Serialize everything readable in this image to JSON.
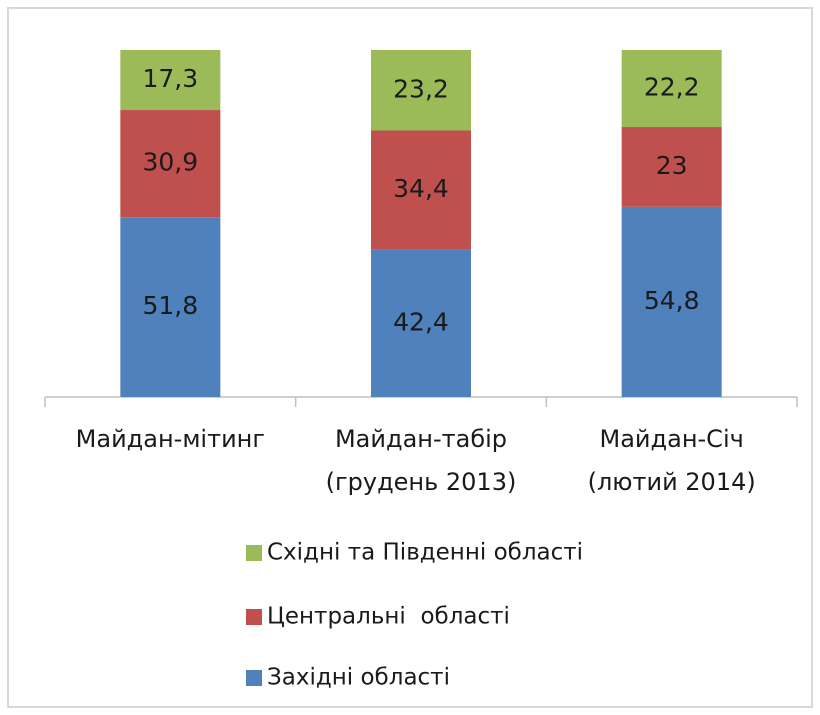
{
  "chart_data": {
    "type": "stacked_bar",
    "categories": [
      "Майдан-мітинг",
      "Майдан-табір\n(грудень 2013)",
      "Майдан-Січ\n(лютий 2014)"
    ],
    "series": [
      {
        "name": "Західні області",
        "color": "#4f81bd",
        "values": [
          51.8,
          42.4,
          54.8
        ],
        "value_labels": [
          "51,8",
          "42,4",
          "54,8"
        ]
      },
      {
        "name": "Центральні  області",
        "color": "#c0504d",
        "values": [
          30.9,
          34.4,
          23
        ],
        "value_labels": [
          "30,9",
          "34,4",
          "23"
        ]
      },
      {
        "name": "Східні та Південні області",
        "color": "#9bbb59",
        "values": [
          17.3,
          23.2,
          22.2
        ],
        "value_labels": [
          "17,3",
          "23,2",
          "22,2"
        ]
      }
    ],
    "ylim": [
      0,
      100
    ]
  }
}
